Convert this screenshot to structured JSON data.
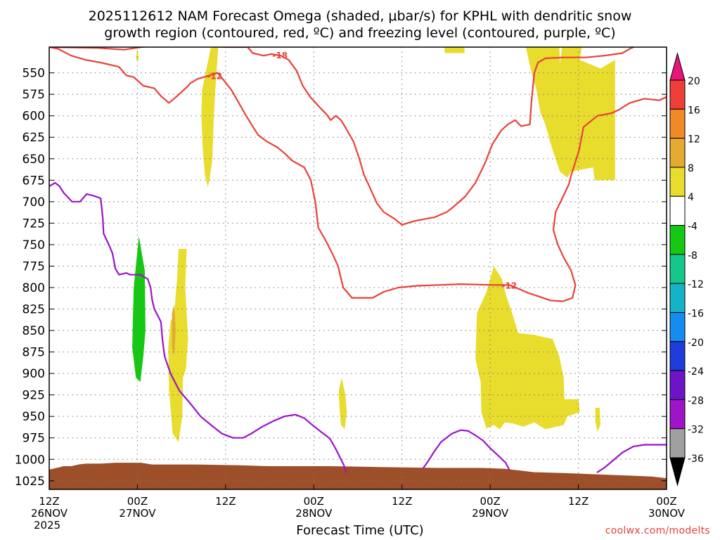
{
  "title_line1": "2025112612 NAM Forecast Omega (shaded, μbar/s) for KPHL with dendritic snow",
  "title_line2": "growth region (contoured, red, ºC) and freezing level (contoured, purple, ºC)",
  "xlabel": "Forecast Time (UTC)",
  "credit": "coolwx.com/modelts",
  "chart_data": {
    "type": "heatmap",
    "title": "2025112612 NAM Forecast Omega (shaded, μbar/s) for KPHL with dendritic snow growth region (contoured, red, ºC) and freezing level (contoured, purple, ºC)",
    "xlabel": "Forecast Time (UTC)",
    "ylabel": "",
    "x_range_hours": [
      0,
      84
    ],
    "y_range_hpa": [
      1035,
      520
    ],
    "y_ticks": [
      550,
      575,
      600,
      625,
      650,
      675,
      700,
      725,
      750,
      775,
      800,
      825,
      850,
      875,
      900,
      925,
      950,
      975,
      1000,
      1025
    ],
    "x_ticks": [
      {
        "hour": 0,
        "lines": [
          "12Z",
          "26NOV",
          "2025"
        ]
      },
      {
        "hour": 12,
        "lines": [
          "00Z",
          "27NOV"
        ]
      },
      {
        "hour": 24,
        "lines": [
          "12Z"
        ]
      },
      {
        "hour": 36,
        "lines": [
          "00Z",
          "28NOV"
        ]
      },
      {
        "hour": 48,
        "lines": [
          "12Z"
        ]
      },
      {
        "hour": 60,
        "lines": [
          "00Z",
          "29NOV"
        ]
      },
      {
        "hour": 72,
        "lines": [
          "12Z"
        ]
      },
      {
        "hour": 84,
        "lines": [
          "00Z",
          "30NOV"
        ]
      }
    ],
    "colorbar": {
      "labels": [
        "20",
        "16",
        "12",
        "8",
        "4",
        "-4",
        "-8",
        "-12",
        "-16",
        "-20",
        "-24",
        "-28",
        "-32",
        "-36"
      ],
      "bins": [
        {
          "color": "#e6157a",
          "range": ">20"
        },
        {
          "color": "#ef3e38",
          "range": "16 to 20"
        },
        {
          "color": "#f08a26",
          "range": "12 to 16"
        },
        {
          "color": "#e4ab30",
          "range": "8 to 12"
        },
        {
          "color": "#e8dc2c",
          "range": "4 to 8"
        },
        {
          "color": "#ffffff",
          "range": "-4 to 4"
        },
        {
          "color": "#14c814",
          "range": "-8 to -4"
        },
        {
          "color": "#14c88c",
          "range": "-12 to -8"
        },
        {
          "color": "#14b4c8",
          "range": "-16 to -12"
        },
        {
          "color": "#148cf0",
          "range": "-20 to -16"
        },
        {
          "color": "#1e3cdc",
          "range": "-24 to -20"
        },
        {
          "color": "#6e14c8",
          "range": "-28 to -24"
        },
        {
          "color": "#a014c8",
          "range": "-32 to -28"
        },
        {
          "color": "#a0a0a0",
          "range": "-36 to -32"
        },
        {
          "color": "#000000",
          "range": "<-36"
        }
      ]
    },
    "contour_labels": [
      {
        "text": "-12",
        "hour": 22.5,
        "hpa": 553
      },
      {
        "text": "-18",
        "hour": 31.4,
        "hpa": 529
      },
      {
        "text": "-12",
        "hour": 62.6,
        "hpa": 797
      }
    ],
    "omega_regions": [
      {
        "value_bin": "4 to 8",
        "points": [
          [
            11.8,
            535
          ],
          [
            12.0,
            520
          ],
          [
            12.2,
            535
          ]
        ]
      },
      {
        "value_bin": "4 to 8",
        "points": [
          [
            20.8,
            570
          ],
          [
            21.4,
            545
          ],
          [
            22.0,
            520
          ],
          [
            23.0,
            520
          ],
          [
            22.8,
            545
          ],
          [
            22.6,
            570
          ],
          [
            22.4,
            600
          ],
          [
            22.2,
            650
          ],
          [
            21.9,
            670
          ],
          [
            21.6,
            683
          ],
          [
            21.2,
            670
          ],
          [
            20.9,
            640
          ],
          [
            20.7,
            600
          ]
        ]
      },
      {
        "value_bin": "4 to 8",
        "points": [
          [
            17.0,
            830
          ],
          [
            17.4,
            790
          ],
          [
            17.6,
            755
          ],
          [
            18.7,
            755
          ],
          [
            18.5,
            800
          ],
          [
            18.9,
            860
          ],
          [
            18.6,
            895
          ],
          [
            18.2,
            905
          ],
          [
            18.1,
            950
          ],
          [
            17.6,
            980
          ],
          [
            16.8,
            970
          ],
          [
            16.3,
            920
          ],
          [
            16.2,
            870
          ],
          [
            16.5,
            840
          ]
        ]
      },
      {
        "value_bin": "8 to 12",
        "points": [
          [
            16.7,
            830
          ],
          [
            17.0,
            820
          ],
          [
            17.2,
            850
          ],
          [
            17.0,
            880
          ],
          [
            16.7,
            870
          ]
        ]
      },
      {
        "value_bin": "4 to 8",
        "points": [
          [
            39.4,
            920
          ],
          [
            39.8,
            905
          ],
          [
            40.3,
            925
          ],
          [
            40.5,
            945
          ],
          [
            40.2,
            965
          ],
          [
            39.7,
            960
          ],
          [
            39.5,
            940
          ]
        ]
      },
      {
        "value_bin": "4 to 8",
        "points": [
          [
            53.8,
            518
          ],
          [
            56.5,
            518
          ],
          [
            56.5,
            527
          ],
          [
            53.8,
            527
          ]
        ]
      },
      {
        "value_bin": "4 to 8",
        "points": [
          [
            58.0,
            883
          ],
          [
            58.2,
            830
          ],
          [
            59.5,
            805
          ],
          [
            60.5,
            775
          ],
          [
            61.6,
            790
          ],
          [
            62.2,
            810
          ],
          [
            63.0,
            830
          ],
          [
            63.8,
            853
          ],
          [
            66.0,
            855
          ],
          [
            68.5,
            860
          ],
          [
            69.4,
            880
          ],
          [
            70.0,
            905
          ],
          [
            70.1,
            930
          ],
          [
            72.0,
            930
          ],
          [
            72.2,
            945
          ],
          [
            70.5,
            950
          ],
          [
            70.0,
            960
          ],
          [
            67.5,
            965
          ],
          [
            66.0,
            957
          ],
          [
            64.5,
            962
          ],
          [
            63.0,
            958
          ],
          [
            62.0,
            957
          ],
          [
            61.3,
            965
          ],
          [
            60.5,
            960
          ],
          [
            59.5,
            964
          ],
          [
            58.8,
            945
          ],
          [
            58.7,
            910
          ]
        ]
      },
      {
        "value_bin": "4 to 8",
        "points": [
          [
            74.3,
            940
          ],
          [
            74.9,
            940
          ],
          [
            75.0,
            960
          ],
          [
            74.6,
            968
          ],
          [
            74.3,
            955
          ]
        ]
      },
      {
        "value_bin": "4 to 8",
        "points": [
          [
            64.8,
            518
          ],
          [
            69.4,
            518
          ],
          [
            69.5,
            540
          ],
          [
            69.8,
            518
          ],
          [
            72.5,
            518
          ],
          [
            72.2,
            535
          ],
          [
            75.0,
            545
          ],
          [
            77.0,
            535
          ],
          [
            77.0,
            675
          ],
          [
            74.2,
            675
          ],
          [
            74.0,
            660
          ],
          [
            71.0,
            665
          ],
          [
            70.5,
            672
          ],
          [
            69.5,
            665
          ],
          [
            68.5,
            640
          ],
          [
            67.5,
            610
          ],
          [
            66.8,
            595
          ],
          [
            66.3,
            570
          ],
          [
            65.5,
            545
          ]
        ]
      },
      {
        "value_bin": "-8 to -4",
        "points": [
          [
            11.5,
            800
          ],
          [
            12.2,
            740
          ],
          [
            13.0,
            780
          ],
          [
            13.1,
            850
          ],
          [
            12.8,
            880
          ],
          [
            12.4,
            910
          ],
          [
            11.8,
            905
          ],
          [
            11.3,
            870
          ],
          [
            11.4,
            830
          ]
        ]
      }
    ],
    "dgz_contour_-12": [
      [
        0,
        520
      ],
      [
        1.2,
        522
      ],
      [
        3,
        530
      ],
      [
        5,
        535
      ],
      [
        7,
        538
      ],
      [
        9.5,
        543
      ],
      [
        10.5,
        553
      ],
      [
        11.5,
        555
      ],
      [
        12.8,
        565
      ],
      [
        14.3,
        568
      ],
      [
        15.2,
        577
      ],
      [
        16.3,
        585
      ],
      [
        17.4,
        577
      ],
      [
        18.8,
        566
      ],
      [
        19.2,
        562
      ],
      [
        20.2,
        557
      ],
      [
        21.8,
        553
      ],
      [
        22.9,
        550
      ],
      [
        23.6,
        557
      ],
      [
        24.8,
        570
      ],
      [
        25.8,
        585
      ],
      [
        26.8,
        600
      ],
      [
        28.4,
        622
      ],
      [
        29.6,
        630
      ],
      [
        31.1,
        637
      ],
      [
        32.2,
        645
      ],
      [
        33,
        652
      ],
      [
        34.7,
        660
      ],
      [
        35.6,
        675
      ],
      [
        36.2,
        700
      ],
      [
        36.6,
        730
      ],
      [
        37.6,
        745
      ],
      [
        38.5,
        760
      ],
      [
        39.3,
        775
      ],
      [
        40.0,
        800
      ],
      [
        41.2,
        812
      ],
      [
        44.0,
        812
      ],
      [
        45.5,
        805
      ],
      [
        47.5,
        800
      ],
      [
        50,
        798
      ],
      [
        53,
        797
      ],
      [
        56,
        796
      ],
      [
        60.5,
        797
      ],
      [
        62.6,
        797
      ],
      [
        63.5,
        800
      ],
      [
        65.1,
        806
      ],
      [
        66.5,
        810
      ],
      [
        68.2,
        815
      ],
      [
        69.9,
        816
      ],
      [
        71.2,
        812
      ],
      [
        71.6,
        797
      ],
      [
        71.0,
        780
      ],
      [
        70.0,
        765
      ],
      [
        69.2,
        750
      ],
      [
        68.6,
        733
      ],
      [
        68.9,
        712
      ],
      [
        69.7,
        698
      ],
      [
        70.7,
        680
      ],
      [
        71.0,
        670
      ],
      [
        72.1,
        640
      ],
      [
        72.7,
        613
      ],
      [
        74.6,
        600
      ],
      [
        76.5,
        597
      ],
      [
        77.5,
        593
      ],
      [
        79.0,
        585
      ],
      [
        81.0,
        580
      ],
      [
        83.0,
        582
      ],
      [
        84,
        578
      ]
    ],
    "dgz_contour_-18": [
      [
        0,
        520
      ],
      [
        6.5,
        521
      ],
      [
        10.2,
        523
      ],
      [
        12.5,
        520
      ],
      [
        15.5,
        518
      ],
      [
        24.5,
        520
      ],
      [
        27.0,
        520
      ],
      [
        27.7,
        527
      ],
      [
        29.2,
        530
      ],
      [
        30.2,
        528
      ],
      [
        31.5,
        530
      ],
      [
        32.6,
        535
      ],
      [
        33.7,
        548
      ],
      [
        34.5,
        565
      ],
      [
        35.5,
        578
      ],
      [
        36.8,
        590
      ],
      [
        37.7,
        598
      ],
      [
        38.3,
        605
      ],
      [
        39.0,
        600
      ],
      [
        39.7,
        605
      ],
      [
        40.4,
        615
      ],
      [
        41.4,
        630
      ],
      [
        42.2,
        650
      ],
      [
        42.8,
        668
      ],
      [
        43.6,
        683
      ],
      [
        44.6,
        702
      ],
      [
        45.5,
        712
      ],
      [
        47.0,
        720
      ],
      [
        48.0,
        727
      ],
      [
        49.1,
        724
      ],
      [
        50.0,
        722
      ],
      [
        52.5,
        718
      ],
      [
        54.1,
        712
      ],
      [
        55.0,
        706
      ],
      [
        56.6,
        694
      ],
      [
        58.0,
        678
      ],
      [
        59.3,
        655
      ],
      [
        60.3,
        633
      ],
      [
        61.5,
        617
      ],
      [
        62.4,
        610
      ],
      [
        63.4,
        605
      ],
      [
        64.2,
        612
      ],
      [
        65.4,
        610
      ],
      [
        65.6,
        585
      ],
      [
        66.0,
        550
      ],
      [
        66.5,
        538
      ],
      [
        67.5,
        533
      ],
      [
        70.0,
        532
      ],
      [
        73.0,
        532
      ],
      [
        75.5,
        530
      ],
      [
        78.0,
        527
      ],
      [
        79.0,
        522
      ],
      [
        80.0,
        518
      ]
    ],
    "freezing_level_0": [
      [
        0,
        682
      ],
      [
        0.8,
        678
      ],
      [
        1.4,
        682
      ],
      [
        2.0,
        690
      ],
      [
        3.1,
        700
      ],
      [
        4.2,
        700
      ],
      [
        5.1,
        691
      ],
      [
        6.0,
        693
      ],
      [
        7.0,
        696
      ],
      [
        7.3,
        720
      ],
      [
        7.4,
        737
      ],
      [
        8.1,
        750
      ],
      [
        8.6,
        760
      ],
      [
        9.0,
        778
      ],
      [
        9.5,
        785
      ],
      [
        10.5,
        783
      ],
      [
        11.0,
        785
      ],
      [
        12.4,
        785
      ],
      [
        13.4,
        790
      ],
      [
        13.8,
        800
      ],
      [
        14.0,
        814
      ],
      [
        14.3,
        825
      ],
      [
        15.2,
        840
      ],
      [
        15.4,
        860
      ],
      [
        15.7,
        880
      ],
      [
        16.5,
        900
      ],
      [
        17.7,
        920
      ],
      [
        19.2,
        935
      ],
      [
        20.6,
        950
      ],
      [
        22.0,
        960
      ],
      [
        23.5,
        970
      ],
      [
        25.0,
        975
      ],
      [
        26.4,
        975
      ],
      [
        27.5,
        970
      ],
      [
        29.0,
        962
      ],
      [
        30.6,
        955
      ],
      [
        32.0,
        950
      ],
      [
        33.5,
        948
      ],
      [
        34.7,
        952
      ],
      [
        35.8,
        960
      ],
      [
        37.0,
        968
      ],
      [
        38.2,
        976
      ],
      [
        39.0,
        988
      ],
      [
        40.1,
        1007
      ],
      [
        40.4,
        1015
      ]
    ],
    "freezing_level_0_b": [
      [
        50.9,
        1010
      ],
      [
        51.5,
        1003
      ],
      [
        52.3,
        992
      ],
      [
        53.3,
        980
      ],
      [
        54.8,
        970
      ],
      [
        56.0,
        966
      ],
      [
        57.0,
        967
      ],
      [
        58.0,
        972
      ],
      [
        59.0,
        978
      ],
      [
        60.0,
        987
      ],
      [
        61.0,
        995
      ],
      [
        62.1,
        1004
      ],
      [
        62.6,
        1012
      ]
    ],
    "freezing_level_0_c": [
      [
        74.6,
        1015
      ],
      [
        75.5,
        1010
      ],
      [
        76.5,
        1003
      ],
      [
        78.0,
        992
      ],
      [
        79.5,
        985
      ],
      [
        81.0,
        983
      ],
      [
        84,
        983
      ]
    ],
    "terrain_top": [
      [
        0,
        1012
      ],
      [
        1,
        1010
      ],
      [
        2,
        1008
      ],
      [
        3,
        1008
      ],
      [
        4,
        1006
      ],
      [
        5,
        1005
      ],
      [
        7,
        1005
      ],
      [
        9,
        1004
      ],
      [
        11,
        1004
      ],
      [
        12.5,
        1004
      ],
      [
        14,
        1006
      ],
      [
        20,
        1006
      ],
      [
        26,
        1007
      ],
      [
        30,
        1008
      ],
      [
        38,
        1008
      ],
      [
        45,
        1009
      ],
      [
        53,
        1010
      ],
      [
        59,
        1010
      ],
      [
        62,
        1011
      ],
      [
        64,
        1013
      ],
      [
        66,
        1015
      ],
      [
        70,
        1016
      ],
      [
        76,
        1018
      ],
      [
        82,
        1020
      ],
      [
        84,
        1022
      ]
    ]
  }
}
